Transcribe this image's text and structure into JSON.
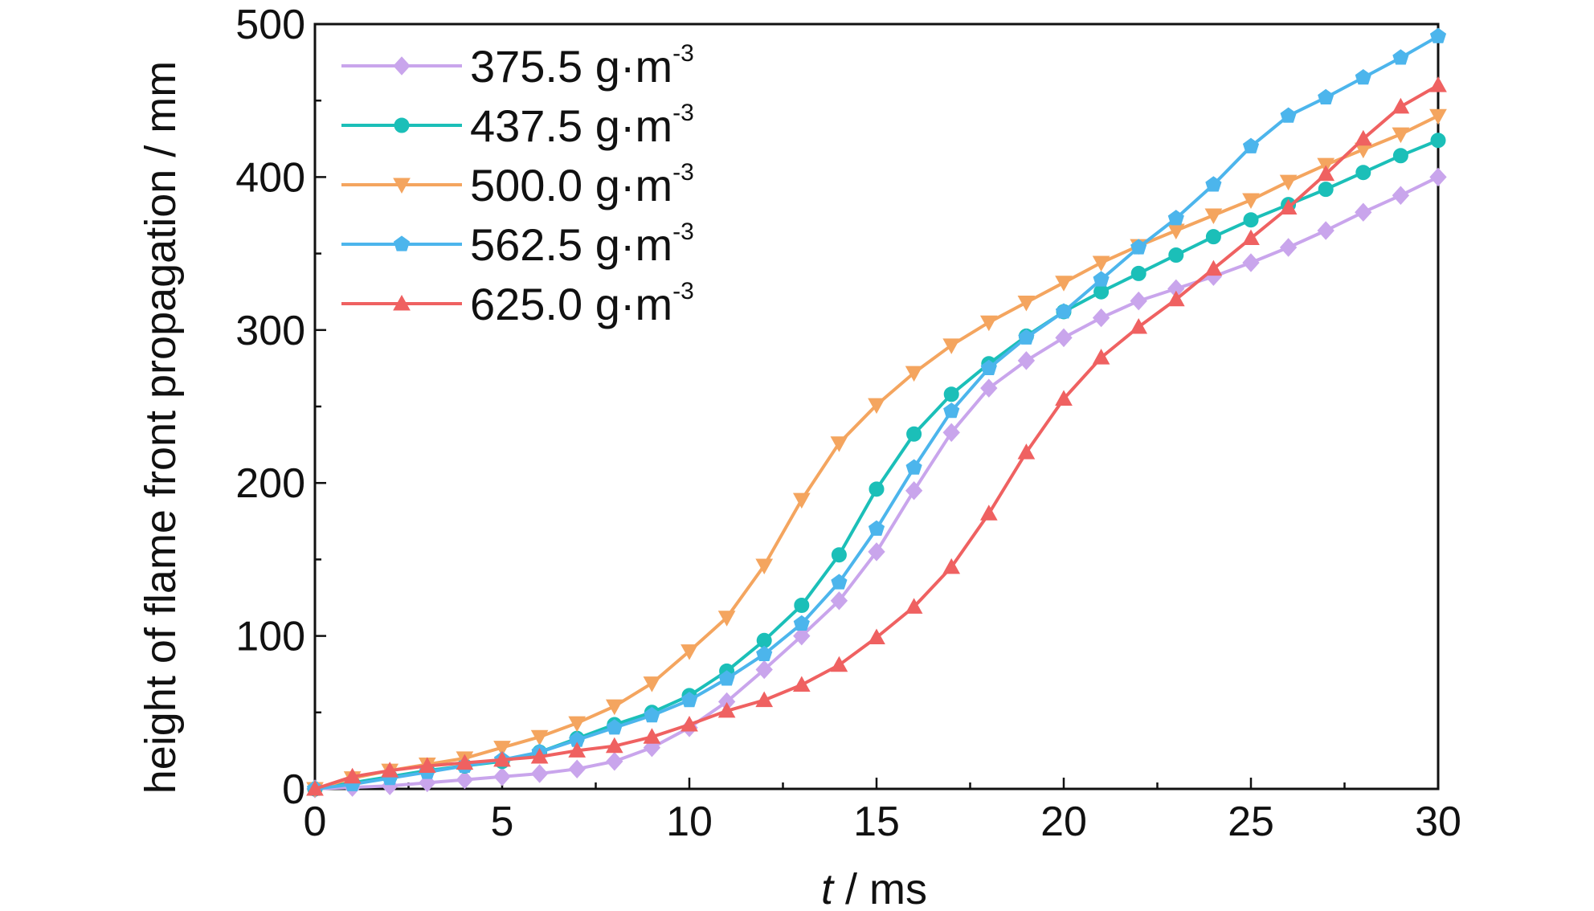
{
  "chart_data": {
    "type": "line",
    "xlabel_italic": "t",
    "xlabel_rest": " / ms",
    "ylabel": "height of flame front propagation / mm",
    "xlim": [
      0,
      30
    ],
    "ylim": [
      0,
      500
    ],
    "xticks": [
      0,
      5,
      10,
      15,
      20,
      25,
      30
    ],
    "yticks": [
      0,
      100,
      200,
      300,
      400,
      500
    ],
    "grid": false,
    "legend_position": "top-left",
    "x": [
      0,
      1,
      2,
      3,
      4,
      5,
      6,
      7,
      8,
      9,
      10,
      11,
      12,
      13,
      14,
      15,
      16,
      17,
      18,
      19,
      20,
      21,
      22,
      23,
      24,
      25,
      26,
      27,
      28,
      29,
      30
    ],
    "series": [
      {
        "name": "375.5  g·m",
        "name_sup": "-3",
        "color": "#c9a5ec",
        "marker": "diamond",
        "values": [
          0,
          1,
          2,
          4,
          6,
          8,
          10,
          13,
          18,
          27,
          40,
          57,
          78,
          100,
          123,
          155,
          195,
          233,
          262,
          280,
          295,
          308,
          319,
          327,
          335,
          344,
          354,
          365,
          377,
          388,
          400
        ]
      },
      {
        "name": "437.5 g·m",
        "name_sup": "-3",
        "color": "#1bbfb8",
        "marker": "circle",
        "values": [
          0,
          4,
          8,
          12,
          15,
          18,
          24,
          33,
          42,
          50,
          61,
          77,
          97,
          120,
          153,
          196,
          232,
          258,
          278,
          296,
          312,
          325,
          337,
          349,
          361,
          372,
          382,
          392,
          403,
          414,
          424
        ]
      },
      {
        "name": "500.0 g·m",
        "name_sup": "-3",
        "color": "#f4a55f",
        "marker": "triangle-down",
        "values": [
          0,
          7,
          12,
          16,
          20,
          27,
          34,
          43,
          54,
          69,
          90,
          112,
          146,
          189,
          226,
          251,
          272,
          290,
          305,
          318,
          331,
          344,
          355,
          365,
          375,
          385,
          397,
          408,
          418,
          428,
          440
        ]
      },
      {
        "name": "562.5 g·m",
        "name_sup": "-3",
        "color": "#4cb5ec",
        "marker": "pentagon",
        "values": [
          0,
          3,
          7,
          11,
          15,
          19,
          24,
          32,
          40,
          48,
          58,
          72,
          88,
          108,
          135,
          170,
          210,
          247,
          275,
          295,
          312,
          333,
          354,
          373,
          395,
          420,
          440,
          452,
          465,
          478,
          492
        ]
      },
      {
        "name": "625.0 g·m",
        "name_sup": "-3",
        "color": "#ef6161",
        "marker": "triangle-up",
        "values": [
          0,
          8,
          12,
          15,
          17,
          19,
          21,
          25,
          28,
          34,
          42,
          51,
          58,
          68,
          81,
          99,
          119,
          145,
          180,
          220,
          255,
          282,
          302,
          320,
          340,
          360,
          380,
          402,
          425,
          446,
          460
        ]
      }
    ]
  }
}
